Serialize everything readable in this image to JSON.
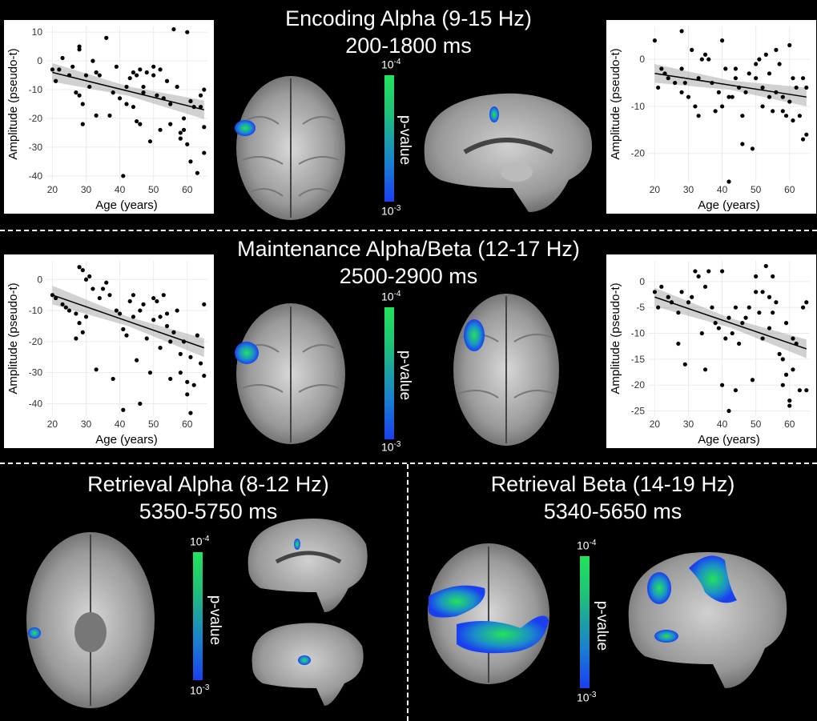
{
  "sections": {
    "encoding": {
      "title_line1": "Encoding Alpha (9-15 Hz)",
      "title_line2": "200-1800 ms"
    },
    "maintenance": {
      "title_line1": "Maintenance Alpha/Beta (12-17 Hz)",
      "title_line2": "2500-2900 ms"
    },
    "retrieval_alpha": {
      "title_line1": "Retrieval Alpha (8-12 Hz)",
      "title_line2": "5350-5750 ms"
    },
    "retrieval_beta": {
      "title_line1": "Retrieval Beta (14-19 Hz)",
      "title_line2": "5340-5650 ms"
    }
  },
  "colorbar": {
    "top": "10",
    "top_exp": "-4",
    "bottom": "10",
    "bottom_exp": "-3",
    "label": "p-value",
    "color_top": "#22e35a",
    "color_bottom": "#1a3ff0"
  },
  "chart_data": [
    {
      "type": "scatter",
      "xlabel": "Age (years)",
      "ylabel": "Amplitude (pseudo-t)",
      "xlim": [
        18,
        66
      ],
      "ylim": [
        -42,
        12
      ],
      "xticks": [
        20,
        30,
        40,
        50,
        60
      ],
      "yticks": [
        10,
        0,
        -10,
        -20,
        -30,
        -40
      ],
      "trend": {
        "x": [
          20,
          65
        ],
        "y": [
          -4,
          -17
        ]
      },
      "points": [
        [
          20,
          -3
        ],
        [
          21,
          -7
        ],
        [
          22,
          -3
        ],
        [
          23,
          1
        ],
        [
          25,
          -5
        ],
        [
          26,
          -2
        ],
        [
          27,
          -11
        ],
        [
          28,
          5
        ],
        [
          28,
          4
        ],
        [
          28,
          -12
        ],
        [
          29,
          -15
        ],
        [
          29,
          -22
        ],
        [
          30,
          -5
        ],
        [
          31,
          -9
        ],
        [
          32,
          0
        ],
        [
          33,
          -19
        ],
        [
          33,
          -4
        ],
        [
          34,
          -5
        ],
        [
          36,
          8
        ],
        [
          37,
          -19
        ],
        [
          38,
          -11
        ],
        [
          39,
          -2
        ],
        [
          40,
          -13
        ],
        [
          41,
          -40
        ],
        [
          42,
          -15
        ],
        [
          42,
          -9
        ],
        [
          43,
          -6
        ],
        [
          44,
          -4
        ],
        [
          44,
          -16
        ],
        [
          45,
          -21
        ],
        [
          45,
          -5
        ],
        [
          46,
          -22
        ],
        [
          46,
          -3
        ],
        [
          47,
          -9
        ],
        [
          47,
          -11
        ],
        [
          48,
          -4
        ],
        [
          49,
          -28
        ],
        [
          50,
          -5
        ],
        [
          50,
          -2
        ],
        [
          51,
          -12
        ],
        [
          52,
          -24
        ],
        [
          52,
          -3
        ],
        [
          53,
          -13
        ],
        [
          54,
          -7
        ],
        [
          55,
          -22
        ],
        [
          55,
          -15
        ],
        [
          56,
          11
        ],
        [
          57,
          -9
        ],
        [
          58,
          -25
        ],
        [
          58,
          -27
        ],
        [
          59,
          -24
        ],
        [
          59,
          -20
        ],
        [
          60,
          10
        ],
        [
          60,
          -29
        ],
        [
          61,
          -14
        ],
        [
          61,
          -35
        ],
        [
          62,
          -16
        ],
        [
          63,
          -39
        ],
        [
          64,
          -12
        ],
        [
          64,
          -16
        ],
        [
          65,
          -23
        ],
        [
          65,
          -32
        ],
        [
          65,
          -10
        ]
      ]
    },
    {
      "type": "scatter",
      "xlabel": "Age (years)",
      "ylabel": "Amplitude (pseudo-t)",
      "xlim": [
        18,
        66
      ],
      "ylim": [
        -26,
        7
      ],
      "xticks": [
        20,
        30,
        40,
        50,
        60
      ],
      "yticks": [
        0,
        -10,
        -20
      ],
      "trend": {
        "x": [
          20,
          65
        ],
        "y": [
          -3,
          -8
        ]
      },
      "points": [
        [
          20,
          4
        ],
        [
          21,
          -6
        ],
        [
          22,
          -2
        ],
        [
          23,
          -3
        ],
        [
          24,
          -4
        ],
        [
          26,
          -5
        ],
        [
          28,
          -2
        ],
        [
          28,
          -7
        ],
        [
          28,
          6
        ],
        [
          29,
          -5
        ],
        [
          30,
          -8
        ],
        [
          31,
          2
        ],
        [
          32,
          -10
        ],
        [
          33,
          -12
        ],
        [
          33,
          -4
        ],
        [
          34,
          0
        ],
        [
          35,
          1
        ],
        [
          36,
          0
        ],
        [
          37,
          -5
        ],
        [
          38,
          -11
        ],
        [
          39,
          -7
        ],
        [
          40,
          4
        ],
        [
          40,
          -10
        ],
        [
          41,
          -2
        ],
        [
          42,
          -26
        ],
        [
          42,
          -8
        ],
        [
          43,
          -8
        ],
        [
          44,
          -4
        ],
        [
          44,
          -2
        ],
        [
          45,
          -6
        ],
        [
          46,
          -18
        ],
        [
          46,
          -12
        ],
        [
          47,
          -7
        ],
        [
          48,
          -3
        ],
        [
          49,
          -19
        ],
        [
          50,
          -1
        ],
        [
          50,
          -4
        ],
        [
          51,
          0
        ],
        [
          52,
          -10
        ],
        [
          52,
          -6
        ],
        [
          53,
          1
        ],
        [
          54,
          -8
        ],
        [
          54,
          -3
        ],
        [
          55,
          -11
        ],
        [
          56,
          2
        ],
        [
          56,
          -7
        ],
        [
          57,
          -1
        ],
        [
          58,
          -11
        ],
        [
          58,
          -8
        ],
        [
          59,
          -12
        ],
        [
          60,
          -9
        ],
        [
          60,
          3
        ],
        [
          61,
          -4
        ],
        [
          61,
          -13
        ],
        [
          62,
          -6
        ],
        [
          63,
          -12
        ],
        [
          64,
          -17
        ],
        [
          64,
          -4
        ],
        [
          65,
          -16
        ],
        [
          65,
          -6
        ]
      ]
    },
    {
      "type": "scatter",
      "xlabel": "Age (years)",
      "ylabel": "Amplitude (pseudo-t)",
      "xlim": [
        18,
        66
      ],
      "ylim": [
        -44,
        6
      ],
      "xticks": [
        20,
        30,
        40,
        50,
        60
      ],
      "yticks": [
        0,
        -10,
        -20,
        -30,
        -40
      ],
      "trend": {
        "x": [
          20,
          65
        ],
        "y": [
          -5,
          -22
        ]
      },
      "points": [
        [
          20,
          -5
        ],
        [
          21,
          -6
        ],
        [
          23,
          -8
        ],
        [
          24,
          -9
        ],
        [
          25,
          -10
        ],
        [
          27,
          -11
        ],
        [
          27,
          -19
        ],
        [
          28,
          4
        ],
        [
          28,
          -14
        ],
        [
          29,
          3
        ],
        [
          29,
          -17
        ],
        [
          30,
          0
        ],
        [
          30,
          -12
        ],
        [
          31,
          1
        ],
        [
          32,
          -3
        ],
        [
          33,
          -29
        ],
        [
          34,
          -6
        ],
        [
          35,
          -3
        ],
        [
          36,
          -1
        ],
        [
          37,
          -5
        ],
        [
          38,
          -32
        ],
        [
          39,
          -10
        ],
        [
          40,
          -11
        ],
        [
          41,
          -42
        ],
        [
          41,
          -16
        ],
        [
          42,
          -18
        ],
        [
          43,
          -7
        ],
        [
          44,
          -5
        ],
        [
          44,
          -12
        ],
        [
          45,
          -26
        ],
        [
          46,
          -40
        ],
        [
          46,
          -10
        ],
        [
          47,
          -8
        ],
        [
          48,
          -19
        ],
        [
          49,
          -30
        ],
        [
          50,
          -6
        ],
        [
          50,
          -13
        ],
        [
          51,
          -7
        ],
        [
          52,
          -12
        ],
        [
          52,
          -22
        ],
        [
          53,
          -5
        ],
        [
          54,
          -11
        ],
        [
          54,
          -15
        ],
        [
          55,
          -32
        ],
        [
          55,
          -20
        ],
        [
          56,
          -17
        ],
        [
          57,
          -10
        ],
        [
          58,
          -24
        ],
        [
          58,
          -30
        ],
        [
          59,
          -20
        ],
        [
          60,
          -33
        ],
        [
          60,
          -37
        ],
        [
          61,
          -43
        ],
        [
          61,
          -25
        ],
        [
          62,
          -34
        ],
        [
          63,
          -18
        ],
        [
          64,
          -27
        ],
        [
          65,
          -31
        ],
        [
          65,
          -8
        ]
      ]
    },
    {
      "type": "scatter",
      "xlabel": "Age (years)",
      "ylabel": "Amplitude (pseudo-t)",
      "xlim": [
        18,
        66
      ],
      "ylim": [
        -26,
        4
      ],
      "xticks": [
        20,
        30,
        40,
        50,
        60
      ],
      "yticks": [
        0,
        -5,
        -10,
        -15,
        -20,
        -25
      ],
      "trend": {
        "x": [
          20,
          65
        ],
        "y": [
          -3,
          -13
        ]
      },
      "points": [
        [
          20,
          -2
        ],
        [
          21,
          -5
        ],
        [
          22,
          -1
        ],
        [
          24,
          -3
        ],
        [
          25,
          -4
        ],
        [
          27,
          -12
        ],
        [
          27,
          -6
        ],
        [
          28,
          -2
        ],
        [
          29,
          -16
        ],
        [
          30,
          -4
        ],
        [
          31,
          -3
        ],
        [
          32,
          2
        ],
        [
          33,
          1
        ],
        [
          34,
          -10
        ],
        [
          35,
          -17
        ],
        [
          35,
          -1
        ],
        [
          36,
          2
        ],
        [
          37,
          -5
        ],
        [
          38,
          -8
        ],
        [
          39,
          -9
        ],
        [
          40,
          2
        ],
        [
          40,
          -20
        ],
        [
          41,
          -11
        ],
        [
          42,
          -25
        ],
        [
          42,
          -7
        ],
        [
          43,
          -10
        ],
        [
          44,
          -21
        ],
        [
          44,
          -5
        ],
        [
          45,
          -12
        ],
        [
          46,
          -8
        ],
        [
          47,
          -7
        ],
        [
          48,
          -5
        ],
        [
          49,
          -19
        ],
        [
          50,
          -2
        ],
        [
          50,
          1
        ],
        [
          51,
          -6
        ],
        [
          52,
          -2
        ],
        [
          52,
          -11
        ],
        [
          53,
          3
        ],
        [
          54,
          -3
        ],
        [
          54,
          -9
        ],
        [
          55,
          -6
        ],
        [
          55,
          1
        ],
        [
          56,
          -4
        ],
        [
          57,
          -14
        ],
        [
          58,
          -15
        ],
        [
          58,
          -20
        ],
        [
          59,
          -18
        ],
        [
          59,
          -8
        ],
        [
          60,
          -23
        ],
        [
          60,
          -24
        ],
        [
          61,
          -17
        ],
        [
          61,
          -11
        ],
        [
          62,
          -12
        ],
        [
          63,
          -21
        ],
        [
          64,
          -5
        ],
        [
          65,
          -21
        ],
        [
          65,
          -4
        ]
      ]
    }
  ]
}
